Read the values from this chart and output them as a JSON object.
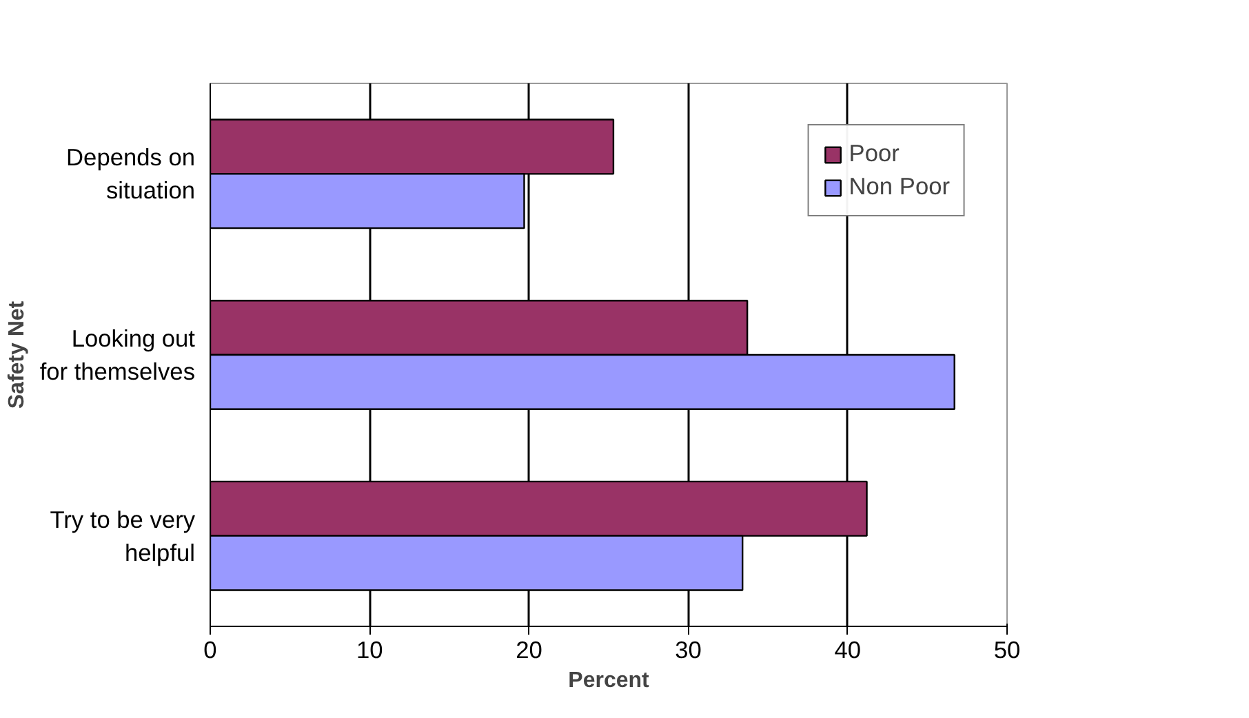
{
  "chart_data": {
    "type": "bar",
    "orientation": "horizontal",
    "xlabel": "Percent",
    "ylabel": "Safety Net",
    "categories": [
      "Depends on situation",
      "Looking out for themselves",
      "Try to be very helpful"
    ],
    "series": [
      {
        "name": "Poor",
        "color": "#993366",
        "values": [
          25.3,
          33.7,
          41.2
        ]
      },
      {
        "name": "Non Poor",
        "color": "#9999ff",
        "values": [
          19.7,
          46.7,
          33.4
        ]
      }
    ],
    "xlim": [
      0,
      50
    ],
    "xticks": [
      0,
      10,
      20,
      30,
      40,
      50
    ],
    "grid": "x",
    "legend": "top right"
  }
}
